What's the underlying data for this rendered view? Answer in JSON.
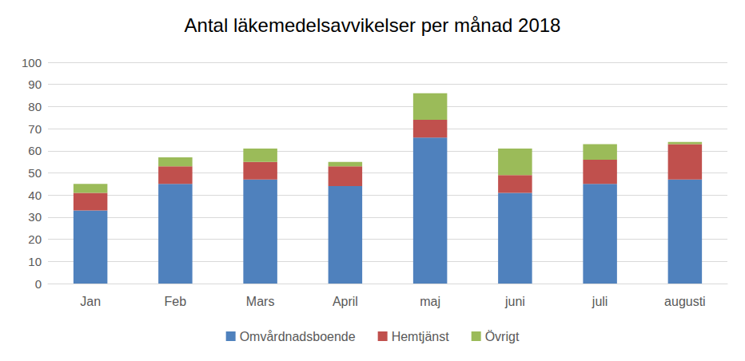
{
  "chart_data": {
    "type": "bar",
    "title": "Antal läkemedelsavvikelser per månad 2018",
    "categories": [
      "Jan",
      "Feb",
      "Mars",
      "April",
      "maj",
      "juni",
      "juli",
      "augusti"
    ],
    "series": [
      {
        "name": "Omvårdnadsboende",
        "color": "#4f81bd",
        "values": [
          33,
          45,
          47,
          44,
          66,
          41,
          45,
          47
        ]
      },
      {
        "name": "Hemtjänst",
        "color": "#c0504d",
        "values": [
          8,
          8,
          8,
          9,
          8,
          8,
          11,
          16
        ]
      },
      {
        "name": "Övrigt",
        "color": "#9bbb59",
        "values": [
          4,
          4,
          6,
          2,
          12,
          12,
          7,
          1
        ]
      }
    ],
    "ylim": [
      0,
      100
    ],
    "yticks": [
      0,
      10,
      20,
      30,
      40,
      50,
      60,
      70,
      80,
      90,
      100
    ],
    "stacked": true,
    "grid": true,
    "legend": "bottom"
  }
}
